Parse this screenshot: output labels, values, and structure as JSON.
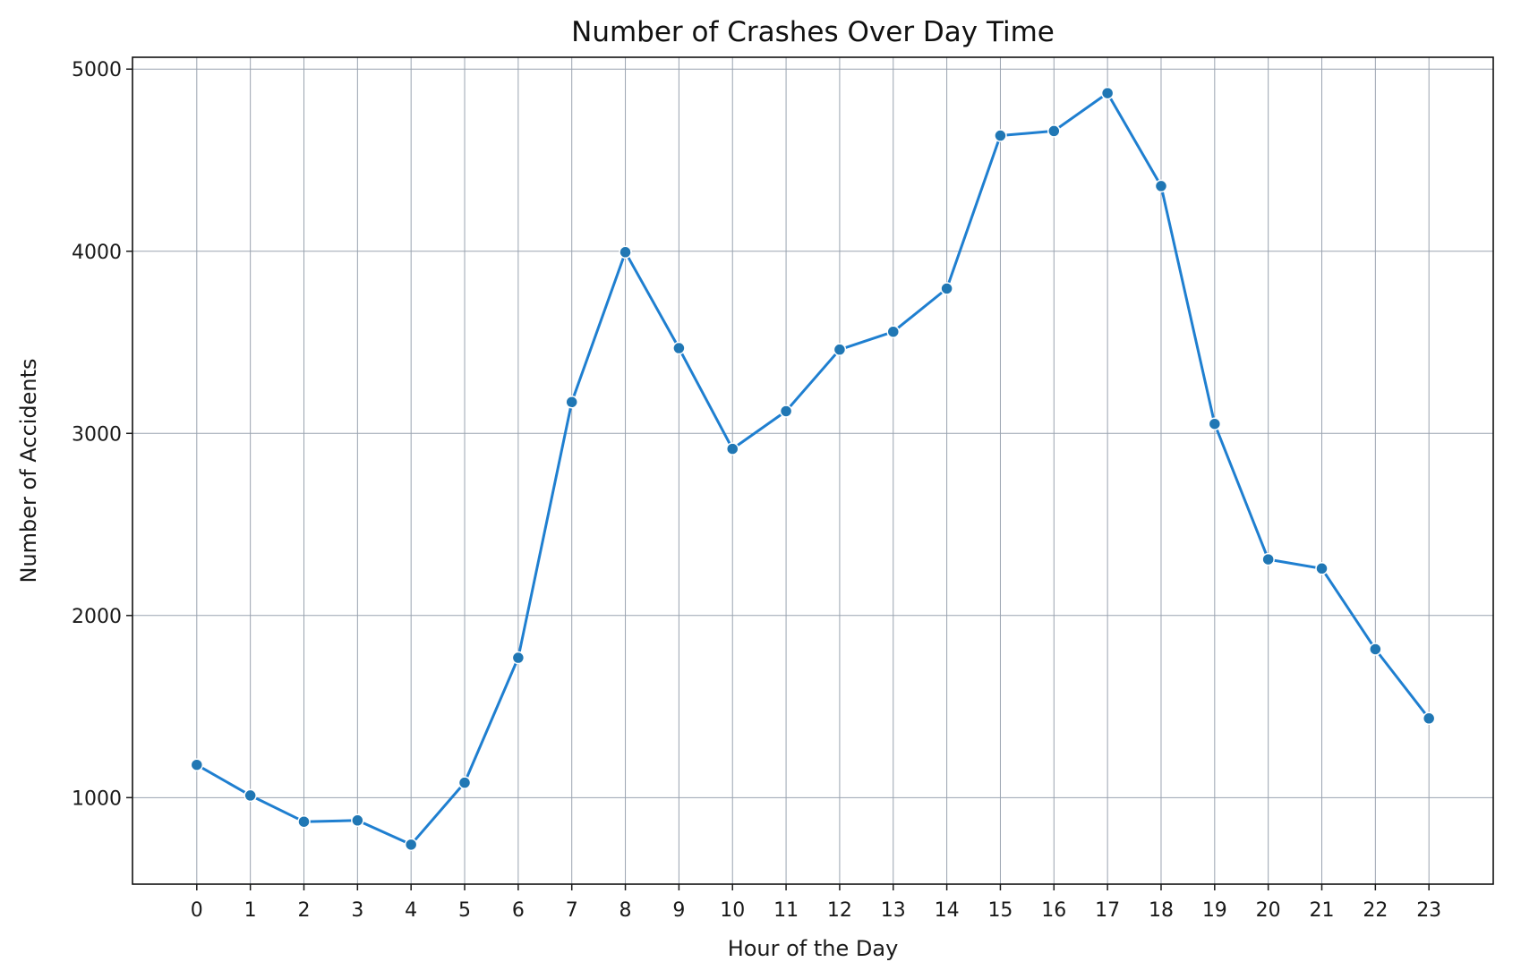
{
  "chart_data": {
    "type": "line",
    "title": "Number of Crashes Over Day Time",
    "xlabel": "Hour of the Day",
    "ylabel": "Number of Accidents",
    "x": [
      0,
      1,
      2,
      3,
      4,
      5,
      6,
      7,
      8,
      9,
      10,
      11,
      12,
      13,
      14,
      15,
      16,
      17,
      18,
      19,
      20,
      21,
      22,
      23
    ],
    "x_tick_labels": [
      "0",
      "1",
      "2",
      "3",
      "4",
      "5",
      "6",
      "7",
      "8",
      "9",
      "10",
      "11",
      "12",
      "13",
      "14",
      "15",
      "16",
      "17",
      "18",
      "19",
      "20",
      "21",
      "22",
      "23"
    ],
    "xlim": [
      -1.2,
      24.2
    ],
    "ylim": [
      525,
      5065
    ],
    "y_ticks": [
      1000,
      2000,
      3000,
      4000,
      5000
    ],
    "y_tick_labels": [
      "1000",
      "2000",
      "3000",
      "4000",
      "5000"
    ],
    "series": [
      {
        "values": [
          1180,
          1012,
          868,
          875,
          742,
          1082,
          1768,
          3172,
          3995,
          3468,
          2915,
          3122,
          3460,
          3558,
          3795,
          4635,
          4660,
          4868,
          4358,
          3052,
          2308,
          2258,
          1815,
          1435
        ],
        "color": "#1f7fd0",
        "marker_color": "#2077b4"
      }
    ],
    "grid": true,
    "legend": false
  }
}
